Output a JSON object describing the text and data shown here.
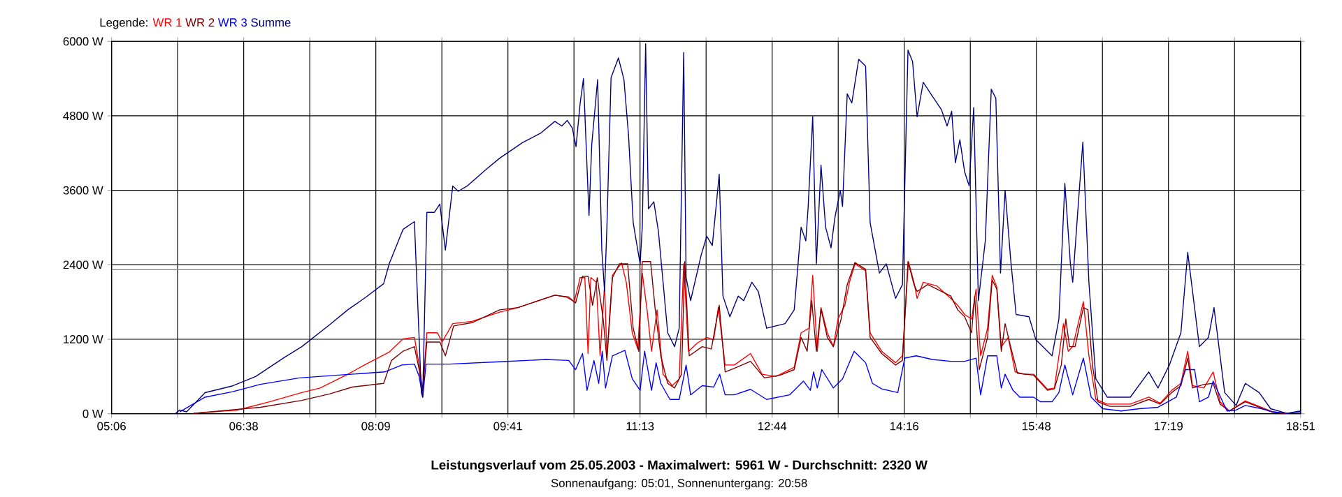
{
  "chart_data": {
    "type": "line",
    "title": "Leistungsverlauf vom 25.05.2003 - Maximalwert: 5961 W - Durchschnitt: 2320 W",
    "subtitle": "Sonnenaufgang: 05:01, Sonnenuntergang: 20:58",
    "legend_title": "Legende:",
    "legend": "top left",
    "grid": true,
    "marker": "none",
    "line_style": "solid",
    "xlim": [
      5.1,
      18.85
    ],
    "ylim": [
      0,
      6000
    ],
    "xticks": [
      {
        "value": 5.1,
        "label": "05:06"
      },
      {
        "value": 5.8639,
        "label": null
      },
      {
        "value": 6.6278,
        "label": "06:38"
      },
      {
        "value": 7.3917,
        "label": null
      },
      {
        "value": 8.1556,
        "label": "08:09"
      },
      {
        "value": 8.9194,
        "label": null
      },
      {
        "value": 9.6833,
        "label": "09:41"
      },
      {
        "value": 10.4472,
        "label": null
      },
      {
        "value": 11.2111,
        "label": "11:13"
      },
      {
        "value": 11.975,
        "label": null
      },
      {
        "value": 12.7389,
        "label": "12:44"
      },
      {
        "value": 13.5028,
        "label": null
      },
      {
        "value": 14.2667,
        "label": "14:16"
      },
      {
        "value": 15.0306,
        "label": null
      },
      {
        "value": 15.7944,
        "label": "15:48"
      },
      {
        "value": 16.5583,
        "label": null
      },
      {
        "value": 17.3222,
        "label": "17:19"
      },
      {
        "value": 18.0861,
        "label": null
      },
      {
        "value": 18.85,
        "label": "18:51"
      }
    ],
    "yticks": [
      {
        "value": 0,
        "label": "0 W"
      },
      {
        "value": 1200,
        "label": "1200 W"
      },
      {
        "value": 2400,
        "label": "2400 W"
      },
      {
        "value": 3600,
        "label": "3600 W"
      },
      {
        "value": 4800,
        "label": "4800 W"
      },
      {
        "value": 6000,
        "label": "6000 W"
      }
    ],
    "ref_lines": [
      {
        "axis": "y",
        "value": 2320,
        "color": "#808080"
      }
    ],
    "series": [
      {
        "name": "WR 1",
        "color": "#ff0000",
        "x": [
          6.047,
          6.553,
          6.925,
          7.299,
          7.511,
          7.831,
          8.043,
          8.31,
          8.47,
          8.602,
          8.657,
          8.698,
          8.746,
          8.869,
          8.922,
          9.045,
          9.268,
          9.588,
          9.8,
          10.226,
          10.359,
          10.45,
          10.519,
          10.573,
          10.61,
          10.642,
          10.705,
          10.749,
          10.801,
          10.828,
          10.892,
          10.998,
          11.052,
          11.121,
          11.185,
          11.237,
          11.292,
          11.344,
          11.408,
          11.477,
          11.584,
          11.664,
          11.716,
          11.771,
          11.876,
          11.983,
          12.063,
          12.116,
          12.195,
          12.302,
          12.489,
          12.622,
          12.782,
          12.994,
          13.074,
          13.165,
          13.208,
          13.261,
          13.304,
          13.377,
          13.447,
          13.5,
          13.58,
          13.633,
          13.697,
          13.82,
          13.872,
          14.006,
          14.166,
          14.246,
          14.315,
          14.379,
          14.415,
          14.486,
          14.645,
          14.805,
          14.885,
          14.965,
          15.045,
          15.097,
          15.15,
          15.23,
          15.284,
          15.337,
          15.389,
          15.469,
          15.549,
          15.656,
          15.763,
          15.923,
          16.003,
          16.108,
          16.163,
          16.215,
          16.338,
          16.402,
          16.482,
          16.614,
          16.881,
          17.094,
          17.226,
          17.36,
          17.466,
          17.545,
          17.6,
          17.732,
          17.839,
          17.919,
          18.025,
          18.211,
          18.371,
          18.531,
          18.69
        ],
        "values": [
          7,
          59,
          193,
          341,
          415,
          637,
          800,
          993,
          1207,
          1230,
          785,
          378,
          1304,
          1304,
          1156,
          1452,
          1489,
          1637,
          1711,
          1911,
          1881,
          1807,
          2193,
          2193,
          970,
          2193,
          2119,
          933,
          2082,
          933,
          2230,
          2430,
          2119,
          1304,
          1044,
          2267,
          1674,
          1007,
          1674,
          637,
          452,
          563,
          2415,
          1007,
          1141,
          1230,
          1193,
          1711,
          785,
          785,
          970,
          637,
          600,
          748,
          1304,
          1378,
          2230,
          1007,
          1711,
          1304,
          1081,
          1526,
          1748,
          2119,
          2415,
          2304,
          1304,
          1007,
          822,
          933,
          2452,
          2119,
          1859,
          2119,
          2059,
          1859,
          1748,
          1600,
          1526,
          2007,
          933,
          1378,
          2230,
          2044,
          1081,
          1230,
          674,
          637,
          637,
          393,
          415,
          1452,
          1007,
          1081,
          1807,
          933,
          230,
          156,
          156,
          267,
          170,
          378,
          489,
          1007,
          452,
          415,
          674,
          193,
          44,
          207,
          119,
          30,
          0
        ]
      },
      {
        "name": "WR 2",
        "color": "#800000",
        "x": [
          6.047,
          6.82,
          7.299,
          7.619,
          7.884,
          8.246,
          8.337,
          8.47,
          8.602,
          8.657,
          8.693,
          8.746,
          8.896,
          8.96,
          9.056,
          9.268,
          9.588,
          9.8,
          10.226,
          10.386,
          10.466,
          10.546,
          10.61,
          10.662,
          10.717,
          10.785,
          10.828,
          10.892,
          10.972,
          11.068,
          11.132,
          11.196,
          11.237,
          11.333,
          11.387,
          11.451,
          11.531,
          11.611,
          11.691,
          11.728,
          11.78,
          11.93,
          12.036,
          12.127,
          12.195,
          12.302,
          12.489,
          12.649,
          12.834,
          12.994,
          13.074,
          13.144,
          13.197,
          13.25,
          13.304,
          13.377,
          13.447,
          13.537,
          13.607,
          13.697,
          13.82,
          13.872,
          14.006,
          14.166,
          14.246,
          14.31,
          14.379,
          14.415,
          14.538,
          14.805,
          14.885,
          14.965,
          15.045,
          15.081,
          15.134,
          15.23,
          15.284,
          15.337,
          15.389,
          15.433,
          15.497,
          15.576,
          15.763,
          15.923,
          16.003,
          16.083,
          16.135,
          16.178,
          16.242,
          16.338,
          16.391,
          16.443,
          16.507,
          16.642,
          16.881,
          17.094,
          17.226,
          17.36,
          17.466,
          17.545,
          17.6,
          17.732,
          17.839,
          17.919,
          18.025,
          18.211,
          18.371,
          18.531,
          18.69
        ],
        "values": [
          7,
          104,
          215,
          319,
          430,
          489,
          859,
          1007,
          1081,
          711,
          341,
          1156,
          1156,
          933,
          1415,
          1467,
          1674,
          1711,
          1911,
          1881,
          1785,
          2215,
          2215,
          1748,
          2193,
          1526,
          859,
          2193,
          2415,
          2415,
          1378,
          1007,
          2452,
          2452,
          1674,
          933,
          489,
          415,
          637,
          2452,
          933,
          1081,
          1044,
          1748,
          674,
          733,
          844,
          578,
          622,
          711,
          1230,
          1007,
          1822,
          1007,
          1689,
          1230,
          1081,
          1526,
          2082,
          2437,
          2326,
          1230,
          970,
          785,
          859,
          2452,
          2082,
          1970,
          2082,
          1896,
          1674,
          1563,
          1304,
          1896,
          711,
          1230,
          2156,
          2007,
          1007,
          1452,
          1081,
          652,
          622,
          378,
          400,
          785,
          1526,
          1081,
          1081,
          1711,
          1674,
          785,
          193,
          119,
          119,
          230,
          156,
          341,
          452,
          896,
          415,
          474,
          489,
          156,
          44,
          193,
          104,
          22,
          0
        ]
      },
      {
        "name": "WR 3",
        "color": "#0000ff",
        "x": [
          5.887,
          6.181,
          6.501,
          6.82,
          7.272,
          7.724,
          8.257,
          8.458,
          8.602,
          8.657,
          8.698,
          8.736,
          9.002,
          9.588,
          10.119,
          10.386,
          10.466,
          10.546,
          10.598,
          10.678,
          10.733,
          10.774,
          10.812,
          10.892,
          11.036,
          11.121,
          11.212,
          11.264,
          11.344,
          11.397,
          11.451,
          11.557,
          11.664,
          11.744,
          11.796,
          11.93,
          12.063,
          12.132,
          12.195,
          12.302,
          12.489,
          12.675,
          12.941,
          13.101,
          13.181,
          13.218,
          13.261,
          13.313,
          13.447,
          13.553,
          13.687,
          13.82,
          13.899,
          14.006,
          14.192,
          14.272,
          14.406,
          14.591,
          14.805,
          14.965,
          15.097,
          15.15,
          15.23,
          15.337,
          15.389,
          15.433,
          15.524,
          15.603,
          15.763,
          15.843,
          15.976,
          16.055,
          16.124,
          16.215,
          16.338,
          16.428,
          16.562,
          16.774,
          16.986,
          17.201,
          17.413,
          17.52,
          17.625,
          17.68,
          17.785,
          17.839,
          17.999,
          18.104,
          18.211,
          18.398,
          18.531,
          18.69,
          18.85
        ],
        "values": [
          30,
          267,
          356,
          474,
          578,
          622,
          674,
          785,
          800,
          600,
          267,
          800,
          800,
          837,
          874,
          859,
          711,
          970,
          378,
          859,
          489,
          1007,
          415,
          933,
          1022,
          563,
          378,
          1007,
          378,
          822,
          489,
          230,
          230,
          785,
          304,
          452,
          430,
          637,
          304,
          304,
          393,
          230,
          304,
          526,
          378,
          674,
          415,
          711,
          415,
          563,
          1007,
          822,
          489,
          400,
          341,
          896,
          933,
          874,
          844,
          844,
          896,
          304,
          933,
          933,
          415,
          637,
          378,
          267,
          267,
          193,
          193,
          341,
          785,
          304,
          896,
          267,
          81,
          44,
          81,
          104,
          267,
          711,
          711,
          193,
          267,
          526,
          44,
          59,
          133,
          81,
          30,
          7,
          30
        ]
      },
      {
        "name": "Summe",
        "color": "#000080",
        "x": [
          5.835,
          5.887,
          5.967,
          6.181,
          6.501,
          6.766,
          7.085,
          7.299,
          7.619,
          7.831,
          8.043,
          8.246,
          8.31,
          8.47,
          8.602,
          8.682,
          8.698,
          8.746,
          8.832,
          8.896,
          8.96,
          9.045,
          9.109,
          9.216,
          9.428,
          9.588,
          9.854,
          10.067,
          10.226,
          10.306,
          10.37,
          10.429,
          10.471,
          10.519,
          10.557,
          10.61,
          10.621,
          10.653,
          10.721,
          10.769,
          10.801,
          10.828,
          10.876,
          10.961,
          11.025,
          11.078,
          11.132,
          11.185,
          11.212,
          11.237,
          11.276,
          11.308,
          11.371,
          11.424,
          11.531,
          11.611,
          11.664,
          11.716,
          11.744,
          11.796,
          11.919,
          11.983,
          12.047,
          12.127,
          12.17,
          12.25,
          12.346,
          12.41,
          12.505,
          12.579,
          12.675,
          12.782,
          12.889,
          12.994,
          13.074,
          13.128,
          13.154,
          13.208,
          13.25,
          13.304,
          13.357,
          13.42,
          13.464,
          13.527,
          13.553,
          13.607,
          13.66,
          13.74,
          13.82,
          13.872,
          13.979,
          14.059,
          14.166,
          14.246,
          14.31,
          14.363,
          14.415,
          14.486,
          14.591,
          14.698,
          14.762,
          14.815,
          14.858,
          14.91,
          14.965,
          15.017,
          15.07,
          15.124,
          15.204,
          15.273,
          15.326,
          15.38,
          15.433,
          15.497,
          15.56,
          15.709,
          15.789,
          15.976,
          16.055,
          16.124,
          16.188,
          16.215,
          16.268,
          16.332,
          16.402,
          16.482,
          16.614,
          16.881,
          17.094,
          17.201,
          17.333,
          17.466,
          17.545,
          17.68,
          17.785,
          17.849,
          17.972,
          18.104,
          18.211,
          18.371,
          18.504,
          18.69,
          18.85
        ],
        "values": [
          0,
          60,
          30,
          340,
          450,
          600,
          896,
          1081,
          1430,
          1674,
          1881,
          2096,
          2415,
          2970,
          3096,
          340,
          267,
          3244,
          3244,
          3378,
          2637,
          3670,
          3585,
          3674,
          3933,
          4118,
          4370,
          4526,
          4711,
          4637,
          4726,
          4600,
          4304,
          5007,
          5400,
          3563,
          3193,
          4341,
          5385,
          2637,
          1970,
          3007,
          5415,
          5733,
          5385,
          4489,
          3081,
          2637,
          2415,
          3007,
          5961,
          3304,
          3415,
          2933,
          1304,
          1081,
          1378,
          5822,
          2193,
          1822,
          2563,
          2859,
          2711,
          3859,
          1896,
          1563,
          1896,
          1822,
          2119,
          1970,
          1378,
          1415,
          1452,
          1674,
          3007,
          2785,
          3304,
          4785,
          2415,
          4007,
          3007,
          2674,
          3156,
          3600,
          3341,
          5155,
          5007,
          5711,
          5600,
          3081,
          2267,
          2415,
          1859,
          2082,
          5859,
          5674,
          4785,
          5341,
          5118,
          4896,
          4637,
          4874,
          4044,
          4415,
          3896,
          3674,
          4933,
          1822,
          2785,
          5230,
          5082,
          2267,
          3600,
          2489,
          1600,
          1563,
          1193,
          933,
          1526,
          3711,
          2415,
          2119,
          3156,
          4378,
          2119,
          563,
          267,
          267,
          674,
          415,
          785,
          1304,
          2600,
          1081,
          1230,
          1711,
          341,
          133,
          489,
          341,
          81,
          7,
          44
        ]
      }
    ]
  }
}
